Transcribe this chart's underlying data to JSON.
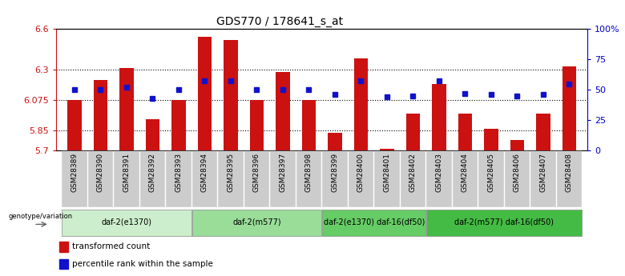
{
  "title": "GDS770 / 178641_s_at",
  "samples": [
    "GSM28389",
    "GSM28390",
    "GSM28391",
    "GSM28392",
    "GSM28393",
    "GSM28394",
    "GSM28395",
    "GSM28396",
    "GSM28397",
    "GSM28398",
    "GSM28399",
    "GSM28400",
    "GSM28401",
    "GSM28402",
    "GSM28403",
    "GSM28404",
    "GSM28405",
    "GSM28406",
    "GSM28407",
    "GSM28408"
  ],
  "bar_values": [
    6.075,
    6.22,
    6.31,
    5.93,
    6.075,
    6.54,
    6.52,
    6.075,
    6.28,
    6.075,
    5.83,
    6.38,
    5.71,
    5.97,
    6.19,
    5.97,
    5.86,
    5.78,
    5.97,
    6.32
  ],
  "percentile_values": [
    50,
    50,
    52,
    43,
    50,
    57,
    57,
    50,
    50,
    50,
    46,
    57,
    44,
    45,
    57,
    47,
    46,
    45,
    46,
    55
  ],
  "ylim_left": [
    5.7,
    6.6
  ],
  "ylim_right": [
    0,
    100
  ],
  "yticks_left": [
    5.7,
    5.85,
    6.075,
    6.3,
    6.6
  ],
  "yticks_right": [
    0,
    25,
    50,
    75,
    100
  ],
  "ytick_labels_left": [
    "5.7",
    "5.85",
    "6.075",
    "6.3",
    "6.6"
  ],
  "ytick_labels_right": [
    "0",
    "25",
    "50",
    "75",
    "100%"
  ],
  "hlines": [
    5.85,
    6.075,
    6.3
  ],
  "bar_color": "#cc1111",
  "dot_color": "#1111cc",
  "groups": [
    {
      "label": "daf-2(e1370)",
      "start": 0,
      "end": 4,
      "color": "#cceecc"
    },
    {
      "label": "daf-2(m577)",
      "start": 5,
      "end": 9,
      "color": "#99dd99"
    },
    {
      "label": "daf-2(e1370) daf-16(df50)",
      "start": 10,
      "end": 13,
      "color": "#66cc66"
    },
    {
      "label": "daf-2(m577) daf-16(df50)",
      "start": 14,
      "end": 19,
      "color": "#44bb44"
    }
  ],
  "genotype_label": "genotype/variation",
  "legend_red_label": "transformed count",
  "legend_blue_label": "percentile rank within the sample",
  "bar_width": 0.55,
  "ybase": 5.7,
  "xtick_bg_color": "#cccccc",
  "title_fontsize": 10
}
